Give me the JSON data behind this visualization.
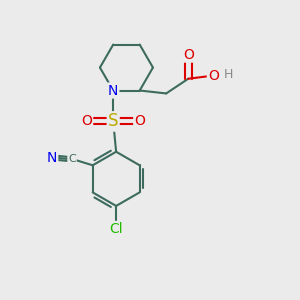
{
  "bg_color": "#ebebeb",
  "bond_color": "#3d6b5e",
  "bond_width": 1.5,
  "dbo": 0.12,
  "atom_colors": {
    "N": "#0000ee",
    "O": "#dd0000",
    "S": "#bbaa00",
    "Cl": "#22bb00",
    "C": "#3d6b5e",
    "H": "#888888"
  },
  "font_size": 9,
  "fig_size": [
    3.0,
    3.0
  ],
  "dpi": 100
}
